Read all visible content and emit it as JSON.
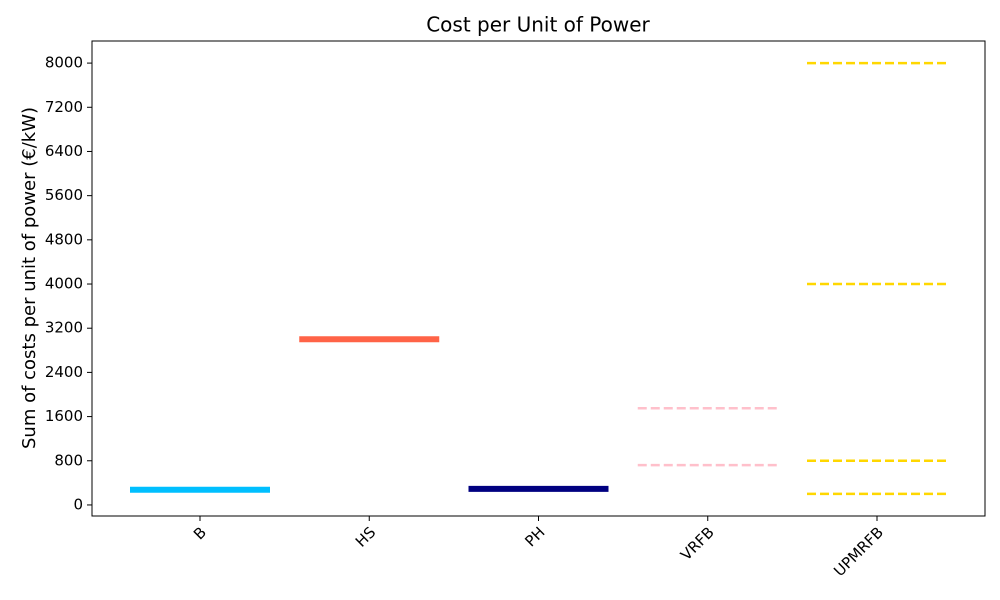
{
  "chart_data": {
    "type": "hlines",
    "title": "Cost per Unit of Power",
    "y_label": "Sum of costs per unit of power (€/kW)",
    "categories": [
      "B",
      "HS",
      "PH",
      "VRFB",
      "UPMRFB"
    ],
    "values": [
      [
        275
      ],
      [
        3000
      ],
      [
        290
      ],
      [
        1750,
        720
      ],
      [
        8000,
        4000,
        800,
        200
      ]
    ],
    "colors": [
      "#00bfff",
      "#ff6347",
      "#000080",
      "#ffc0cb",
      "#ffd700"
    ],
    "dashed": [
      false,
      false,
      false,
      true,
      true
    ],
    "ylim": [
      -200,
      8400
    ],
    "yticks": [
      0,
      800,
      1600,
      2400,
      3200,
      4000,
      4800,
      5600,
      6400,
      7200,
      8000
    ]
  }
}
